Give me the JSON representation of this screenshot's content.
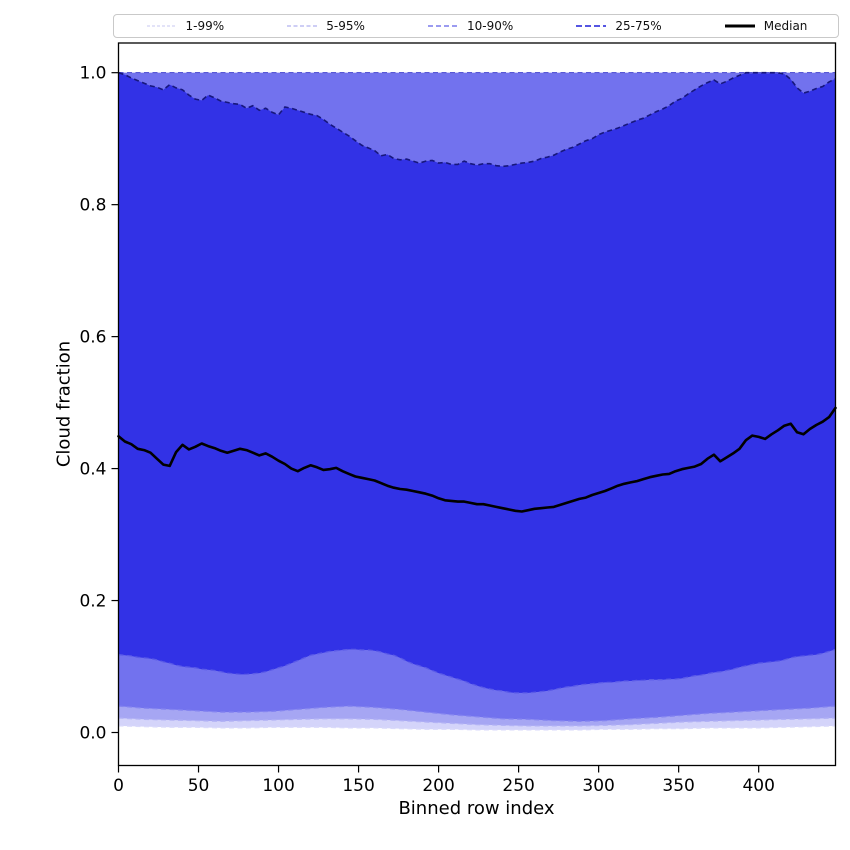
{
  "figure": {
    "background": "#ffffff",
    "frame_color": "#000000"
  },
  "chart_data": {
    "type": "area",
    "subtype": "percentile-fan-chart",
    "title": "",
    "xlabel": "Binned row index",
    "ylabel": "Cloud fraction",
    "xlim": [
      0,
      448
    ],
    "ylim": [
      -0.05,
      1.045
    ],
    "grid": false,
    "xticks": [
      0,
      50,
      100,
      150,
      200,
      250,
      300,
      350,
      400
    ],
    "xtick_labels": [
      "0",
      "50",
      "100",
      "150",
      "200",
      "250",
      "300",
      "350",
      "400"
    ],
    "yticks": [
      0.0,
      0.2,
      0.4,
      0.6,
      0.8,
      1.0
    ],
    "ytick_labels": [
      "0.0",
      "0.2",
      "0.4",
      "0.6",
      "0.8",
      "1.0"
    ],
    "legend": {
      "position": "top",
      "items": [
        {
          "label": "1-99%",
          "color": "#d2d2f4",
          "dash": "3 2",
          "width": 1.2
        },
        {
          "label": "5-95%",
          "color": "#b0b0ef",
          "dash": "4 2.5",
          "width": 1.3
        },
        {
          "label": "10-90%",
          "color": "#7a7aec",
          "dash": "5 3",
          "width": 1.5
        },
        {
          "label": "25-75%",
          "color": "#5555e2",
          "dash": "6 3",
          "width": 2
        },
        {
          "label": "Median",
          "color": "#000000",
          "dash": "",
          "width": 3
        }
      ]
    },
    "series": {
      "x_dense": [
        0,
        4,
        8,
        12,
        16,
        20,
        24,
        28,
        32,
        36,
        40,
        44,
        48,
        52,
        56,
        60,
        64,
        68,
        72,
        76,
        80,
        84,
        88,
        92,
        96,
        100,
        104,
        108,
        112,
        116,
        120,
        124,
        128,
        132,
        136,
        140,
        144,
        148,
        152,
        156,
        160,
        164,
        168,
        172,
        176,
        180,
        184,
        188,
        192,
        196,
        200,
        204,
        208,
        212,
        216,
        220,
        224,
        228,
        232,
        236,
        240,
        244,
        248,
        252,
        256,
        260,
        264,
        268,
        272,
        276,
        280,
        284,
        288,
        292,
        296,
        300,
        304,
        308,
        312,
        316,
        320,
        324,
        328,
        332,
        336,
        340,
        344,
        348,
        352,
        356,
        360,
        364,
        368,
        372,
        376,
        380,
        384,
        388,
        392,
        396,
        400,
        404,
        408,
        412,
        416,
        420,
        424,
        428,
        432,
        436,
        440,
        444,
        448
      ],
      "median": [
        0.449,
        0.441,
        0.437,
        0.43,
        0.428,
        0.424,
        0.415,
        0.406,
        0.404,
        0.425,
        0.436,
        0.429,
        0.433,
        0.438,
        0.434,
        0.431,
        0.427,
        0.424,
        0.427,
        0.43,
        0.428,
        0.424,
        0.42,
        0.423,
        0.418,
        0.412,
        0.407,
        0.4,
        0.396,
        0.401,
        0.405,
        0.402,
        0.398,
        0.399,
        0.401,
        0.396,
        0.392,
        0.388,
        0.386,
        0.384,
        0.382,
        0.378,
        0.374,
        0.371,
        0.369,
        0.368,
        0.366,
        0.364,
        0.362,
        0.359,
        0.355,
        0.352,
        0.351,
        0.35,
        0.35,
        0.348,
        0.346,
        0.346,
        0.344,
        0.342,
        0.34,
        0.338,
        0.336,
        0.335,
        0.337,
        0.339,
        0.34,
        0.341,
        0.342,
        0.345,
        0.348,
        0.351,
        0.354,
        0.356,
        0.36,
        0.363,
        0.366,
        0.37,
        0.374,
        0.377,
        0.379,
        0.381,
        0.384,
        0.387,
        0.389,
        0.391,
        0.392,
        0.396,
        0.399,
        0.401,
        0.403,
        0.407,
        0.415,
        0.421,
        0.411,
        0.417,
        0.423,
        0.43,
        0.443,
        0.45,
        0.448,
        0.445,
        0.452,
        0.458,
        0.465,
        0.468,
        0.455,
        0.452,
        0.46,
        0.466,
        0.471,
        0.478,
        0.492
      ],
      "p75": [
        1.0,
        0.997,
        0.992,
        0.988,
        0.984,
        0.98,
        0.978,
        0.974,
        0.982,
        0.977,
        0.974,
        0.966,
        0.96,
        0.958,
        0.966,
        0.962,
        0.957,
        0.955,
        0.953,
        0.952,
        0.946,
        0.95,
        0.943,
        0.946,
        0.94,
        0.936,
        0.948,
        0.946,
        0.943,
        0.94,
        0.937,
        0.935,
        0.929,
        0.922,
        0.916,
        0.91,
        0.904,
        0.897,
        0.89,
        0.886,
        0.882,
        0.874,
        0.876,
        0.87,
        0.868,
        0.869,
        0.866,
        0.863,
        0.866,
        0.867,
        0.863,
        0.864,
        0.861,
        0.861,
        0.866,
        0.862,
        0.86,
        0.862,
        0.862,
        0.859,
        0.858,
        0.859,
        0.861,
        0.863,
        0.864,
        0.866,
        0.87,
        0.872,
        0.875,
        0.88,
        0.884,
        0.887,
        0.892,
        0.897,
        0.9,
        0.906,
        0.91,
        0.913,
        0.916,
        0.92,
        0.924,
        0.928,
        0.931,
        0.936,
        0.941,
        0.945,
        0.95,
        0.957,
        0.961,
        0.968,
        0.974,
        0.98,
        0.985,
        0.989,
        0.983,
        0.987,
        0.992,
        0.996,
        1.0,
        1.0,
        1.0,
        1.0,
        1.0,
        1.0,
        0.998,
        0.99,
        0.977,
        0.969,
        0.972,
        0.976,
        0.979,
        0.986,
        0.991
      ],
      "p25": [
        0.118,
        0.117,
        0.116,
        0.114,
        0.113,
        0.112,
        0.11,
        0.107,
        0.105,
        0.102,
        0.1,
        0.099,
        0.098,
        0.096,
        0.095,
        0.094,
        0.092,
        0.09,
        0.089,
        0.088,
        0.088,
        0.089,
        0.09,
        0.092,
        0.095,
        0.098,
        0.101,
        0.105,
        0.109,
        0.113,
        0.117,
        0.119,
        0.121,
        0.123,
        0.124,
        0.125,
        0.126,
        0.126,
        0.125,
        0.125,
        0.124,
        0.122,
        0.119,
        0.117,
        0.113,
        0.108,
        0.104,
        0.101,
        0.098,
        0.094,
        0.09,
        0.087,
        0.084,
        0.081,
        0.078,
        0.074,
        0.071,
        0.068,
        0.066,
        0.064,
        0.063,
        0.061,
        0.06,
        0.06,
        0.06,
        0.061,
        0.062,
        0.063,
        0.065,
        0.067,
        0.069,
        0.07,
        0.072,
        0.073,
        0.074,
        0.075,
        0.076,
        0.076,
        0.077,
        0.078,
        0.078,
        0.079,
        0.079,
        0.08,
        0.08,
        0.08,
        0.081,
        0.081,
        0.082,
        0.084,
        0.086,
        0.087,
        0.089,
        0.091,
        0.092,
        0.094,
        0.096,
        0.099,
        0.101,
        0.103,
        0.105,
        0.106,
        0.107,
        0.108,
        0.11,
        0.113,
        0.115,
        0.116,
        0.117,
        0.118,
        0.12,
        0.123,
        0.126
      ],
      "x_sparse": [
        0,
        16,
        32,
        48,
        64,
        80,
        96,
        112,
        128,
        144,
        160,
        176,
        192,
        208,
        224,
        240,
        256,
        272,
        288,
        304,
        320,
        336,
        352,
        368,
        384,
        400,
        416,
        432,
        448
      ],
      "p10": [
        0.04,
        0.037,
        0.035,
        0.033,
        0.031,
        0.031,
        0.032,
        0.035,
        0.038,
        0.04,
        0.038,
        0.035,
        0.031,
        0.027,
        0.024,
        0.021,
        0.02,
        0.018,
        0.017,
        0.018,
        0.021,
        0.023,
        0.026,
        0.029,
        0.031,
        0.033,
        0.035,
        0.037,
        0.04
      ],
      "p5": [
        0.022,
        0.02,
        0.019,
        0.018,
        0.017,
        0.018,
        0.019,
        0.02,
        0.021,
        0.021,
        0.02,
        0.018,
        0.016,
        0.014,
        0.012,
        0.011,
        0.01,
        0.01,
        0.01,
        0.011,
        0.012,
        0.014,
        0.016,
        0.017,
        0.018,
        0.019,
        0.02,
        0.021,
        0.022
      ],
      "p1": [
        0.01,
        0.009,
        0.008,
        0.008,
        0.007,
        0.007,
        0.008,
        0.008,
        0.008,
        0.007,
        0.007,
        0.006,
        0.005,
        0.005,
        0.004,
        0.004,
        0.004,
        0.004,
        0.004,
        0.005,
        0.005,
        0.006,
        0.006,
        0.007,
        0.007,
        0.007,
        0.008,
        0.009,
        0.01
      ],
      "p90_const": 1.0,
      "p95_const": 1.0,
      "p99_const": 1.0
    },
    "bands": [
      {
        "name": "1-99",
        "x": "x_sparse",
        "lower": "p1",
        "upper_const": 1.0,
        "fill": "#d4d4fa",
        "edge_upper": "#cfcff3",
        "edge_lower": "#dadafb"
      },
      {
        "name": "5-95",
        "x": "x_sparse",
        "lower": "p5",
        "upper_const": 1.0,
        "fill": "#a6a6f3",
        "edge_upper": "#a4a4ec",
        "edge_lower": "#b2b2f5"
      },
      {
        "name": "10-90",
        "x": "x_sparse",
        "lower": "p10",
        "upper_const": 1.0,
        "fill": "#7272ee",
        "edge_upper": "#5858d6",
        "edge_lower": "#8484f0"
      },
      {
        "name": "25-75",
        "x": "x_dense",
        "lower": "p25",
        "upper": "p75",
        "fill": "#3232e6",
        "edge_upper": "#17177c",
        "edge_lower": "#5b5be8"
      }
    ],
    "median_style": {
      "color": "#000000",
      "width": 2.6
    }
  }
}
